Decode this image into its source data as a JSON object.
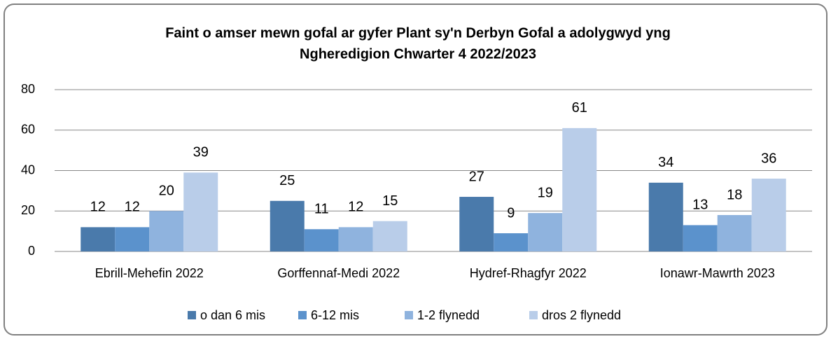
{
  "chart_data": {
    "type": "bar",
    "title": "Faint o amser mewn gofal ar gyfer Plant sy'n Derbyn Gofal a adolygwyd yng",
    "subtitle": "Ngheredigion Chwarter 4  2022/2023",
    "categories": [
      "Ebrill-Mehefin 2022",
      "Gorffennaf-Medi 2022",
      "Hydref-Rhagfyr 2022",
      "Ionawr-Mawrth 2023"
    ],
    "series": [
      {
        "name": "o dan 6 mis",
        "color": "#4a7aab",
        "values": [
          12,
          25,
          27,
          34
        ]
      },
      {
        "name": "6-12 mis",
        "color": "#5b92cc",
        "values": [
          12,
          11,
          9,
          13
        ]
      },
      {
        "name": "1-2 flynedd",
        "color": "#8fb3de",
        "values": [
          20,
          12,
          19,
          18
        ]
      },
      {
        "name": "dros 2 flynedd",
        "color": "#b9cde9",
        "values": [
          39,
          15,
          61,
          36
        ]
      }
    ],
    "ylim": [
      0,
      80
    ],
    "yticks": [
      0,
      20,
      40,
      60,
      80
    ],
    "grid": true,
    "legend": "bottom"
  }
}
